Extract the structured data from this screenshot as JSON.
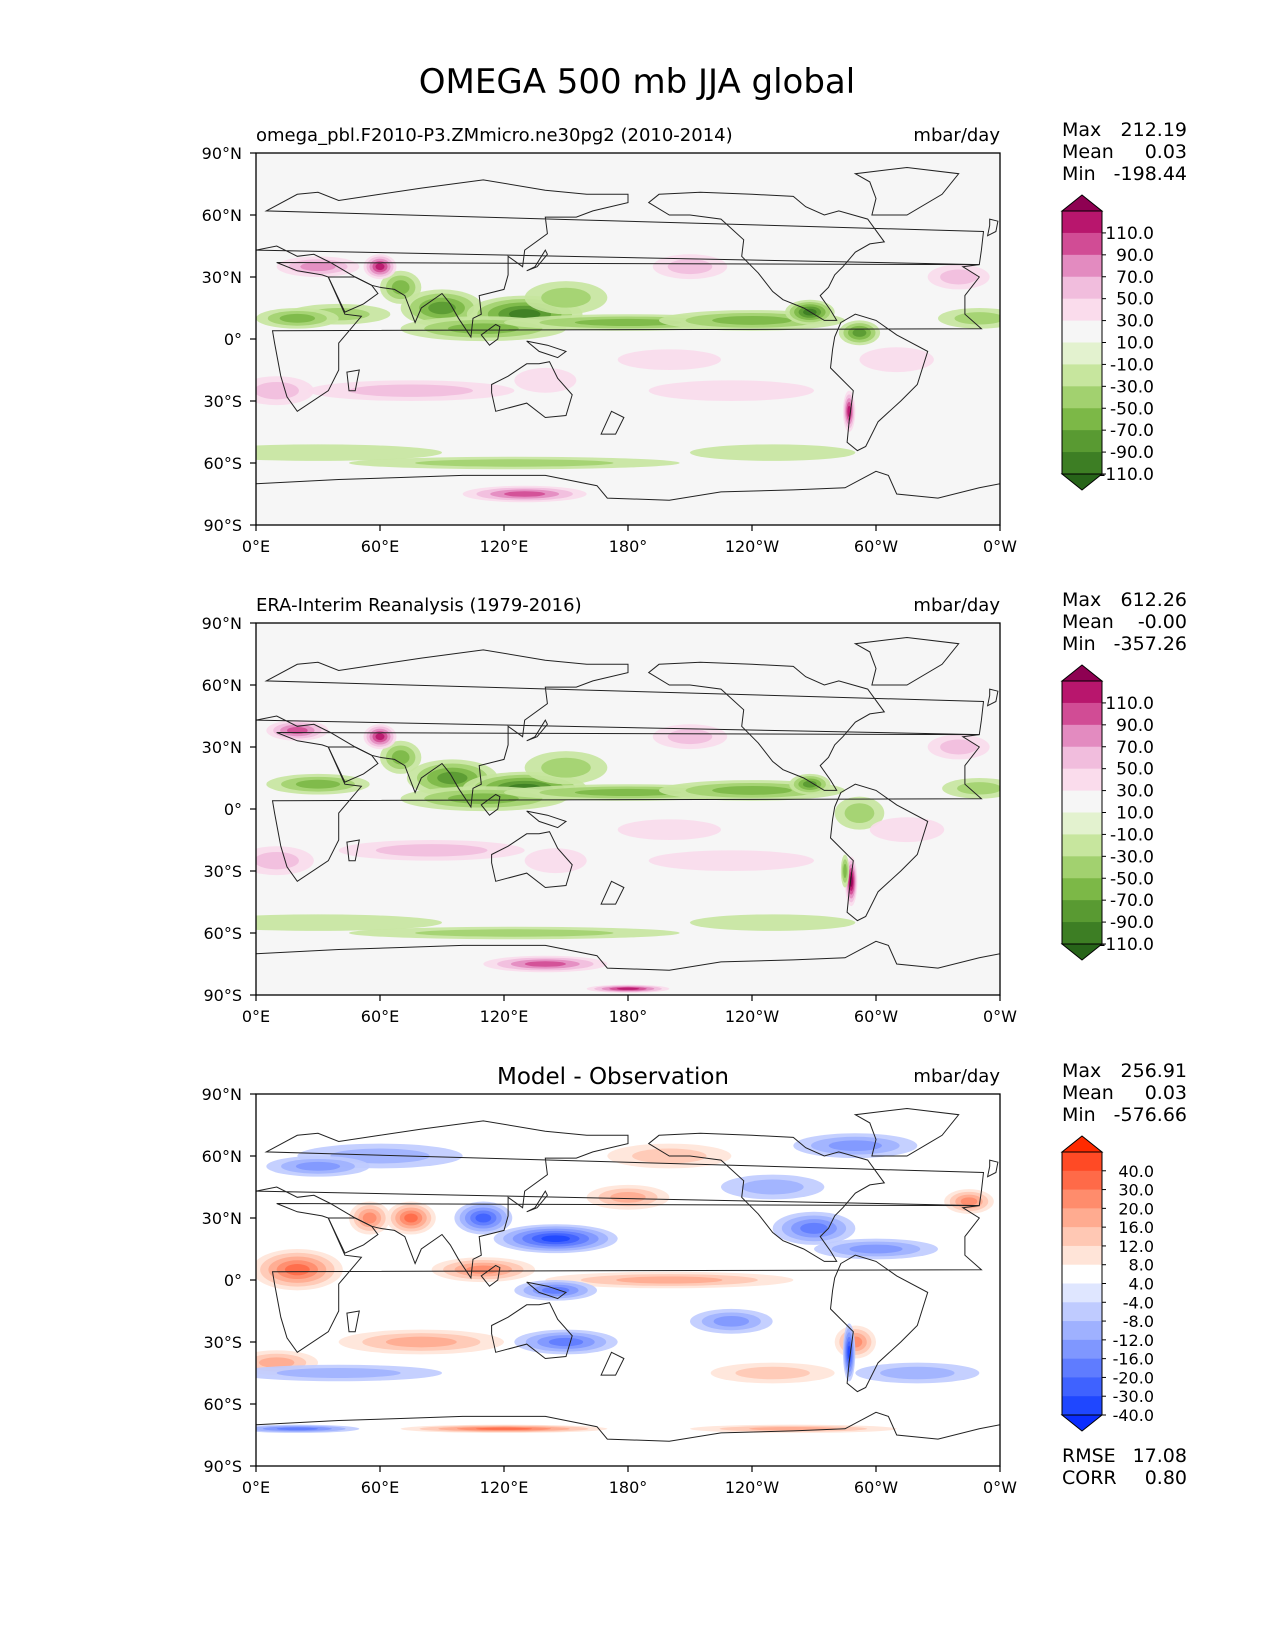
{
  "figure": {
    "title": "OMEGA 500 mb JJA global"
  },
  "panels": [
    {
      "id": "model",
      "title_left": "omega_pbl.F2010-P3.ZMmicro.ne30pg2 (2010-2014)",
      "title_center": "",
      "units": "mbar/day",
      "stats": [
        {
          "label": "Max",
          "value": "212.19"
        },
        {
          "label": "Mean",
          "value": "0.03"
        },
        {
          "label": "Min",
          "value": "-198.44"
        }
      ],
      "colorbar": {
        "ticks": [
          "110.0",
          "90.0",
          "70.0",
          "50.0",
          "30.0",
          "10.0",
          "-10.0",
          "-30.0",
          "-50.0",
          "-70.0",
          "-90.0",
          "-110.0"
        ],
        "colors": [
          "#8e0152",
          "#b8166d",
          "#d14c95",
          "#e38bc0",
          "#f1bddd",
          "#fadcec",
          "#f6f6f6",
          "#e3f2cf",
          "#c7e69e",
          "#a2d16f",
          "#7cb847",
          "#599a32",
          "#3d7e24",
          "#276419"
        ]
      },
      "bottom_stats": []
    },
    {
      "id": "obs",
      "title_left": "ERA-Interim Reanalysis (1979-2016)",
      "title_center": "",
      "units": "mbar/day",
      "stats": [
        {
          "label": "Max",
          "value": "612.26"
        },
        {
          "label": "Mean",
          "value": "-0.00"
        },
        {
          "label": "Min",
          "value": "-357.26"
        }
      ],
      "colorbar": {
        "ticks": [
          "110.0",
          "90.0",
          "70.0",
          "50.0",
          "30.0",
          "10.0",
          "-10.0",
          "-30.0",
          "-50.0",
          "-70.0",
          "-90.0",
          "-110.0"
        ],
        "colors": [
          "#8e0152",
          "#b8166d",
          "#d14c95",
          "#e38bc0",
          "#f1bddd",
          "#fadcec",
          "#f6f6f6",
          "#e3f2cf",
          "#c7e69e",
          "#a2d16f",
          "#7cb847",
          "#599a32",
          "#3d7e24",
          "#276419"
        ]
      },
      "bottom_stats": []
    },
    {
      "id": "diff",
      "title_left": "",
      "title_center": "Model - Observation",
      "units": "mbar/day",
      "stats": [
        {
          "label": "Max",
          "value": "256.91"
        },
        {
          "label": "Mean",
          "value": "0.03"
        },
        {
          "label": "Min",
          "value": "-576.66"
        }
      ],
      "colorbar": {
        "ticks": [
          "40.0",
          "30.0",
          "20.0",
          "16.0",
          "12.0",
          "8.0",
          "4.0",
          "-4.0",
          "-8.0",
          "-12.0",
          "-16.0",
          "-20.0",
          "-30.0",
          "-40.0"
        ],
        "colors": [
          "#ff2a00",
          "#ff4a25",
          "#ff6a48",
          "#ff8c6c",
          "#ffab90",
          "#ffc8b4",
          "#ffe4d8",
          "#ffffff",
          "#dfe6ff",
          "#bfcbff",
          "#9fb1ff",
          "#7f97ff",
          "#5f7cff",
          "#3f62ff",
          "#1f47ff",
          "#0a2dff"
        ]
      },
      "bottom_stats": [
        {
          "label": "RMSE",
          "value": "17.08"
        },
        {
          "label": "CORR",
          "value": "0.80"
        }
      ]
    }
  ],
  "axes": {
    "lat_ticks": [
      "90°N",
      "60°N",
      "30°N",
      "0°",
      "30°S",
      "60°S",
      "90°S"
    ],
    "lon_ticks": [
      "0°E",
      "60°E",
      "120°E",
      "180°",
      "120°W",
      "60°W",
      "0°W"
    ]
  },
  "map_style": {
    "model_background": "#f6f6f6",
    "diff_background": "#ffffff",
    "coastline_color": "#222222"
  }
}
